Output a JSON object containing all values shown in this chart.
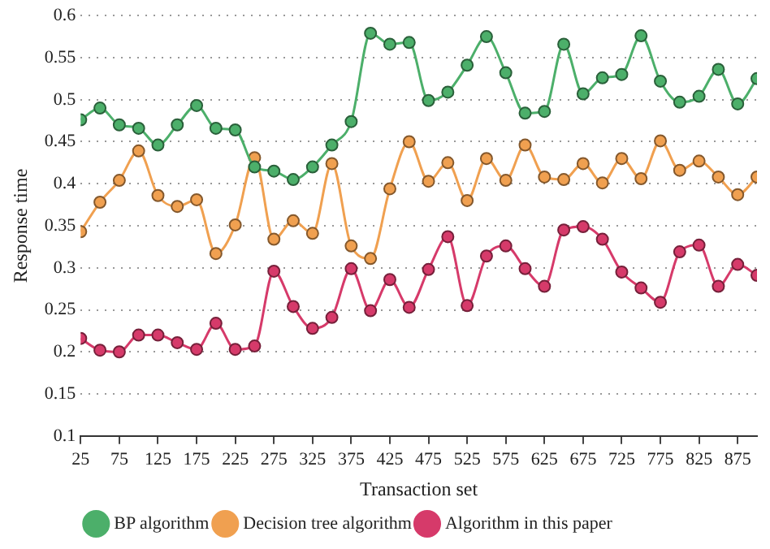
{
  "chart_data": {
    "type": "line",
    "xlabel": "Transaction set",
    "ylabel": "Response time",
    "x": [
      25,
      50,
      75,
      100,
      125,
      150,
      175,
      200,
      225,
      250,
      275,
      300,
      325,
      350,
      375,
      400,
      425,
      450,
      475,
      500,
      525,
      550,
      575,
      600,
      625,
      650,
      675,
      700,
      725,
      750,
      775,
      800,
      825,
      850,
      875,
      900
    ],
    "xlim": [
      25,
      900
    ],
    "xticks": [
      25,
      75,
      125,
      175,
      225,
      275,
      325,
      375,
      425,
      475,
      525,
      575,
      625,
      675,
      725,
      775,
      825,
      875
    ],
    "ylim": [
      0.1,
      0.6
    ],
    "yticks": [
      0.1,
      0.15,
      0.2,
      0.25,
      0.3,
      0.35,
      0.4,
      0.45,
      0.5,
      0.55,
      0.6
    ],
    "grid": "y",
    "legend": "bottom left",
    "marker": "circle",
    "line_style": "solid",
    "series": [
      {
        "name": "BP algorithm",
        "color": "#4caf6a",
        "values": [
          0.476,
          0.49,
          0.47,
          0.466,
          0.446,
          0.47,
          0.493,
          0.466,
          0.464,
          0.42,
          0.415,
          0.405,
          0.42,
          0.446,
          0.474,
          0.579,
          0.566,
          0.568,
          0.499,
          0.509,
          0.541,
          0.575,
          0.532,
          0.484,
          0.486,
          0.566,
          0.507,
          0.526,
          0.53,
          0.576,
          0.522,
          0.497,
          0.504,
          0.536,
          0.495,
          0.525
        ]
      },
      {
        "name": "Decision tree algorithm",
        "color": "#f0a050",
        "values": [
          0.343,
          0.378,
          0.404,
          0.439,
          0.386,
          0.373,
          0.381,
          0.317,
          0.351,
          0.431,
          0.334,
          0.356,
          0.341,
          0.424,
          0.326,
          0.311,
          0.394,
          0.45,
          0.403,
          0.425,
          0.38,
          0.43,
          0.404,
          0.446,
          0.408,
          0.405,
          0.424,
          0.401,
          0.43,
          0.406,
          0.451,
          0.416,
          0.427,
          0.408,
          0.387,
          0.408
        ]
      },
      {
        "name": "Algorithm in this paper",
        "color": "#d63a6a",
        "values": [
          0.216,
          0.202,
          0.2,
          0.22,
          0.22,
          0.211,
          0.203,
          0.234,
          0.203,
          0.207,
          0.296,
          0.254,
          0.228,
          0.241,
          0.299,
          0.249,
          0.286,
          0.253,
          0.298,
          0.337,
          0.255,
          0.314,
          0.326,
          0.299,
          0.278,
          0.345,
          0.349,
          0.334,
          0.295,
          0.276,
          0.259,
          0.319,
          0.327,
          0.278,
          0.304,
          0.291
        ]
      }
    ]
  }
}
